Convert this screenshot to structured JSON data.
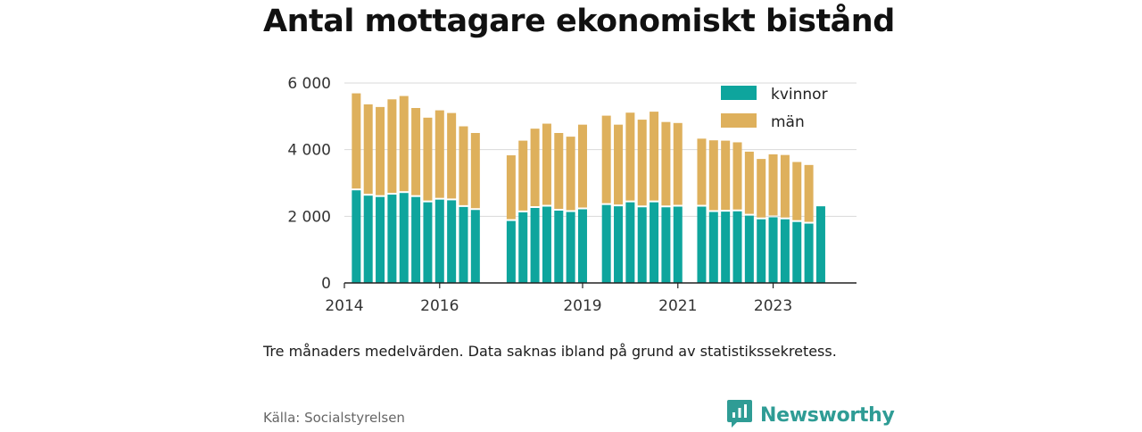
{
  "title": "Antal mottagare ekonomiskt bistånd",
  "note": "Tre månaders medelvärden. Data saknas ibland på grund av statistikssekretess.",
  "source": "Källa: Socialstyrelsen",
  "brand": {
    "name": "Newsworthy",
    "icon": "newsworthy-logo-icon",
    "color": "#2f9c95"
  },
  "colors": {
    "kvinnor": "#0ea59d",
    "man": "#deb05c",
    "grid": "#d9d9d9",
    "axis": "#222222"
  },
  "chart_data": {
    "type": "bar",
    "stacked": true,
    "title": "Antal mottagare ekonomiskt bistånd",
    "xlabel": "",
    "ylabel": "",
    "ylim": [
      0,
      6000
    ],
    "yticks": [
      0,
      2000,
      4000,
      6000
    ],
    "ytick_labels": [
      "0",
      "2 000",
      "4 000",
      "6 000"
    ],
    "xticks": [
      2014,
      2016,
      2019,
      2021,
      2023
    ],
    "xtick_labels": [
      "2014",
      "2016",
      "2019",
      "2021",
      "2023"
    ],
    "x_range": [
      2014.0,
      2024.75
    ],
    "grid": "horizontal",
    "legend_position": "top-right",
    "series": [
      {
        "name": "kvinnor",
        "color": "#0ea59d",
        "x": [
          2014.25,
          2014.5,
          2014.75,
          2015.0,
          2015.25,
          2015.5,
          2015.75,
          2016.0,
          2016.25,
          2016.5,
          2016.75,
          2017.5,
          2017.75,
          2018.0,
          2018.25,
          2018.5,
          2018.75,
          2019.0,
          2019.5,
          2019.75,
          2020.0,
          2020.25,
          2020.5,
          2020.75,
          2021.0,
          2021.5,
          2021.75,
          2022.0,
          2022.25,
          2022.5,
          2022.75,
          2023.0,
          2023.25,
          2023.5,
          2023.75,
          2024.0
        ],
        "values": [
          2780,
          2620,
          2580,
          2650,
          2700,
          2580,
          2420,
          2500,
          2480,
          2280,
          2190,
          1860,
          2120,
          2250,
          2290,
          2170,
          2130,
          2210,
          2340,
          2300,
          2420,
          2270,
          2420,
          2270,
          2290,
          2290,
          2130,
          2140,
          2150,
          2020,
          1910,
          1970,
          1910,
          1830,
          1780,
          2300
        ]
      },
      {
        "name": "män",
        "color": "#deb05c",
        "x": [
          2014.25,
          2014.5,
          2014.75,
          2015.0,
          2015.25,
          2015.5,
          2015.75,
          2016.0,
          2016.25,
          2016.5,
          2016.75,
          2017.5,
          2017.75,
          2018.0,
          2018.25,
          2018.5,
          2018.75,
          2019.0,
          2019.5,
          2019.75,
          2020.0,
          2020.25,
          2020.5,
          2020.75,
          2021.0,
          2021.5,
          2021.75,
          2022.0,
          2022.25,
          2022.5,
          2022.75,
          2023.0,
          2023.25,
          2023.5,
          2023.75,
          2024.0
        ],
        "values": [
          2910,
          2740,
          2700,
          2860,
          2910,
          2670,
          2540,
          2680,
          2620,
          2420,
          2310,
          1970,
          2150,
          2380,
          2490,
          2330,
          2260,
          2540,
          2680,
          2450,
          2690,
          2630,
          2720,
          2560,
          2510,
          2040,
          2150,
          2130,
          2070,
          1920,
          1810,
          1890,
          1930,
          1800,
          1760,
          0
        ]
      }
    ]
  }
}
